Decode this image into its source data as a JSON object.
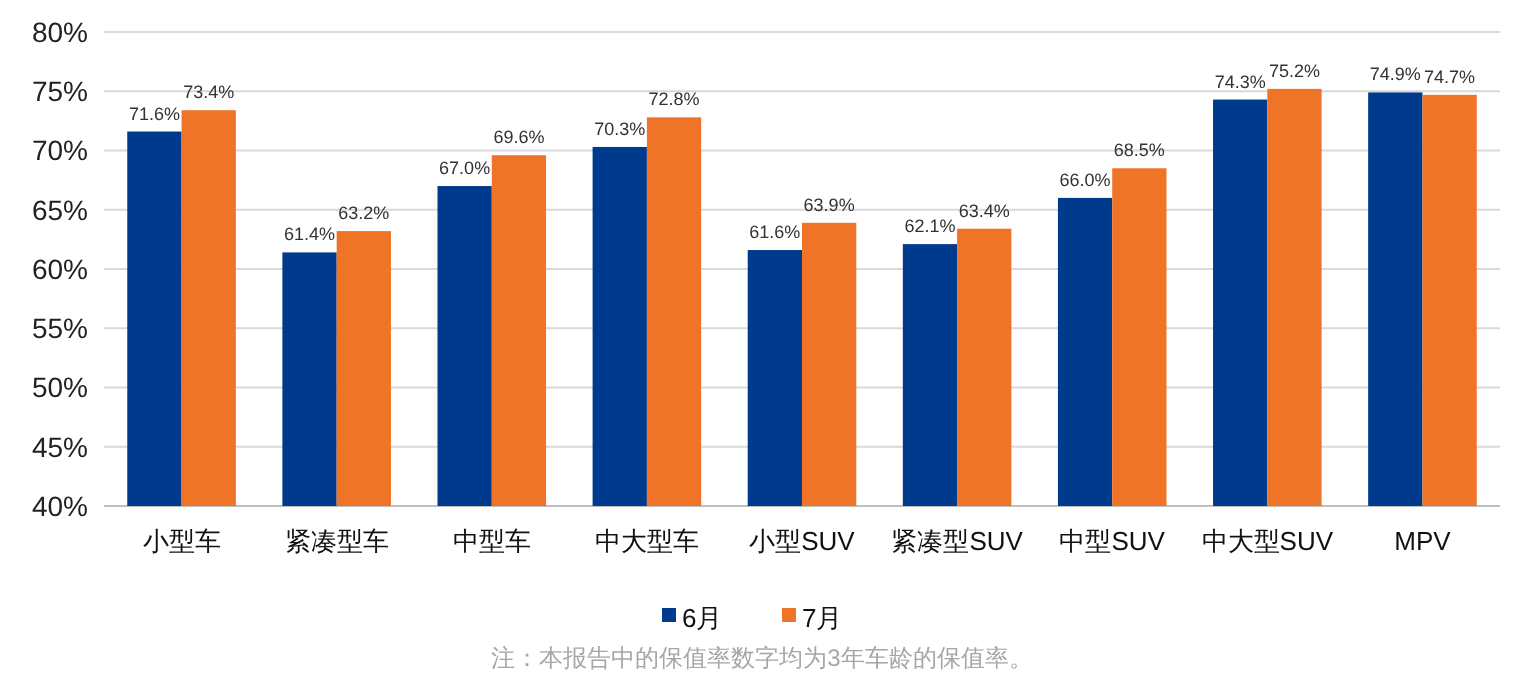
{
  "chart_data": {
    "type": "bar",
    "categories": [
      "小型车",
      "紧凑型车",
      "中型车",
      "中大型车",
      "小型SUV",
      "紧凑型SUV",
      "中型SUV",
      "中大型SUV",
      "MPV"
    ],
    "series": [
      {
        "name": "6月",
        "color": "#003a8c",
        "values": [
          71.6,
          61.4,
          67.0,
          70.3,
          61.6,
          62.1,
          66.0,
          74.3,
          74.9
        ],
        "value_labels": [
          "71.6%",
          "61.4%",
          "67.0%",
          "70.3%",
          "61.6%",
          "62.1%",
          "66.0%",
          "74.3%",
          "74.9%"
        ]
      },
      {
        "name": "7月",
        "color": "#f07428",
        "values": [
          73.4,
          63.2,
          69.6,
          72.8,
          63.9,
          63.4,
          68.5,
          75.2,
          74.7
        ],
        "value_labels": [
          "73.4%",
          "63.2%",
          "69.6%",
          "72.8%",
          "63.9%",
          "63.4%",
          "68.5%",
          "75.2%",
          "74.7%"
        ]
      }
    ],
    "ylim": [
      40,
      80
    ],
    "yticks": [
      {
        "value": 40,
        "label": "40%"
      },
      {
        "value": 45,
        "label": "45%"
      },
      {
        "value": 50,
        "label": "50%"
      },
      {
        "value": 55,
        "label": "55%"
      },
      {
        "value": 60,
        "label": "60%"
      },
      {
        "value": 65,
        "label": "65%"
      },
      {
        "value": 70,
        "label": "70%"
      },
      {
        "value": 75,
        "label": "75%"
      },
      {
        "value": 80,
        "label": "80%"
      }
    ],
    "grid": "y",
    "legend": "bottom",
    "annotations": [
      "注：本报告中的保值率数字均为3年车龄的保值率。"
    ]
  }
}
